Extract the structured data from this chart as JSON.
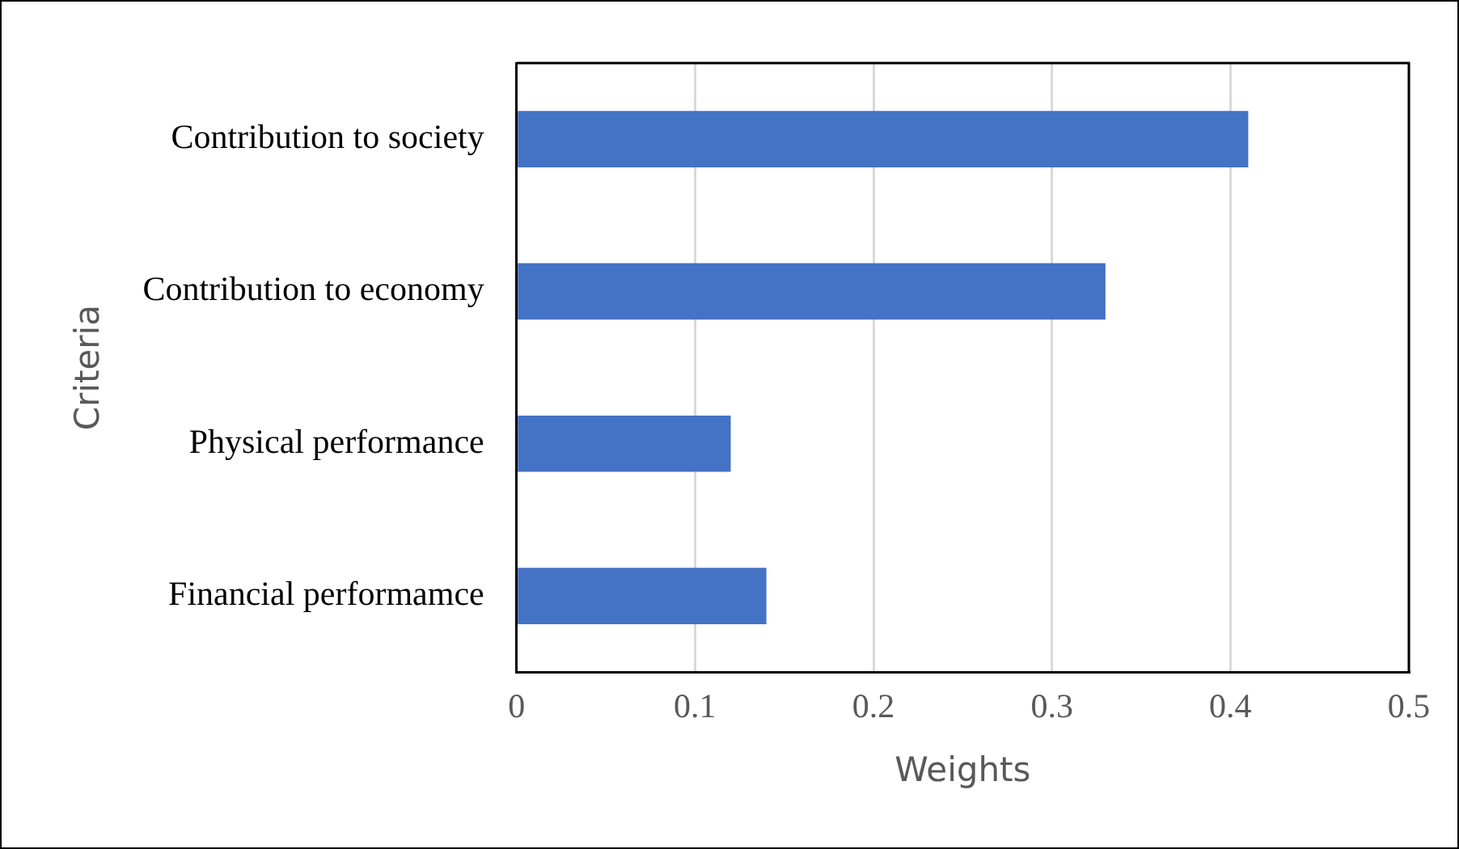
{
  "chart_data": {
    "type": "bar",
    "orientation": "horizontal",
    "xlabel": "Weights",
    "ylabel": "Criteria",
    "categories": [
      "Contribution to society",
      "Contribution to economy",
      "Physical performance",
      "Financial performamce"
    ],
    "values": [
      0.41,
      0.33,
      0.12,
      0.14
    ],
    "color": "#4472c4",
    "xlim": [
      0,
      0.5
    ],
    "xticks": [
      0,
      0.1,
      0.2,
      0.3,
      0.4,
      0.5
    ],
    "grid": "x",
    "legend": false
  }
}
